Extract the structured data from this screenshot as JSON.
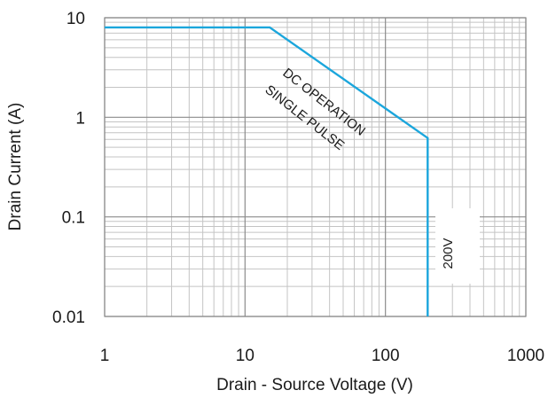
{
  "chart_data": {
    "type": "line",
    "xlabel": "Drain - Source Voltage (V)",
    "ylabel": "Drain Current  (A)",
    "xscale": "log",
    "yscale": "log",
    "xlim": [
      1,
      1000
    ],
    "ylim": [
      0.01,
      10
    ],
    "grid": true,
    "x_ticks": [
      1,
      10,
      100,
      1000
    ],
    "x_tick_labels": [
      "1",
      "10",
      "100",
      "1000"
    ],
    "y_ticks": [
      0.01,
      0.1,
      1,
      10
    ],
    "y_tick_labels": [
      "0.01",
      "0.1",
      "1",
      "10"
    ],
    "series": [
      {
        "color": "#1ba6dc",
        "x": [
          1,
          15,
          200,
          200
        ],
        "y": [
          8,
          8,
          0.62,
          0.01
        ]
      }
    ],
    "annotations": {
      "dc_operation": "DC OPERATION",
      "single_pulse": "SINGLE PULSE",
      "voltage_limit": "200V"
    }
  }
}
